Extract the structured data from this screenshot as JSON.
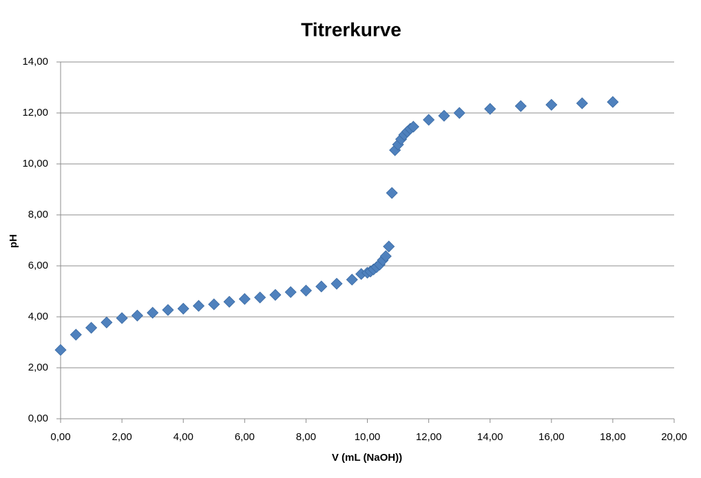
{
  "chart_data": {
    "type": "scatter",
    "title": "Titrerkurve",
    "x_label": "V (mL (NaOH))",
    "y_label": "pH",
    "x": [
      0,
      0.5,
      1,
      1.5,
      2,
      2.5,
      3,
      3.5,
      4,
      4.5,
      5,
      5.5,
      6,
      6.5,
      7,
      7.5,
      8,
      8.5,
      9,
      9.5,
      9.8,
      10,
      10.1,
      10.2,
      10.3,
      10.4,
      10.5,
      10.6,
      10.7,
      10.8,
      10.9,
      11,
      11.1,
      11.2,
      11.3,
      11.4,
      11.5,
      12,
      12.5,
      13,
      14,
      15,
      16,
      17,
      18
    ],
    "series": [
      {
        "color": "#4f81bd",
        "values": [
          2.7,
          3.3,
          3.57,
          3.78,
          3.95,
          4.05,
          4.16,
          4.27,
          4.32,
          4.43,
          4.49,
          4.59,
          4.7,
          4.76,
          4.86,
          4.97,
          5.03,
          5.19,
          5.3,
          5.46,
          5.68,
          5.73,
          5.78,
          5.86,
          5.95,
          6.05,
          6.22,
          6.38,
          6.76,
          8.86,
          10.54,
          10.76,
          10.97,
          11.14,
          11.27,
          11.38,
          11.46,
          11.73,
          11.89,
          12.0,
          12.16,
          12.27,
          12.32,
          12.38,
          12.43
        ]
      }
    ],
    "xlim": [
      0,
      20
    ],
    "ylim": [
      0,
      14
    ],
    "xticks": [
      {
        "value": 0,
        "label": "0,00"
      },
      {
        "value": 2,
        "label": "2,00"
      },
      {
        "value": 4,
        "label": "4,00"
      },
      {
        "value": 6,
        "label": "6,00"
      },
      {
        "value": 8,
        "label": "8,00"
      },
      {
        "value": 10,
        "label": "10,00"
      },
      {
        "value": 12,
        "label": "12,00"
      },
      {
        "value": 14,
        "label": "14,00"
      },
      {
        "value": 16,
        "label": "16,00"
      },
      {
        "value": 18,
        "label": "18,00"
      },
      {
        "value": 20,
        "label": "20,00"
      }
    ],
    "yticks": [
      {
        "value": 0,
        "label": "0,00"
      },
      {
        "value": 2,
        "label": "2,00"
      },
      {
        "value": 4,
        "label": "4,00"
      },
      {
        "value": 6,
        "label": "6,00"
      },
      {
        "value": 8,
        "label": "8,00"
      },
      {
        "value": 10,
        "label": "10,00"
      },
      {
        "value": 12,
        "label": "12,00"
      },
      {
        "value": 14,
        "label": "14,00"
      }
    ],
    "grid": true
  }
}
